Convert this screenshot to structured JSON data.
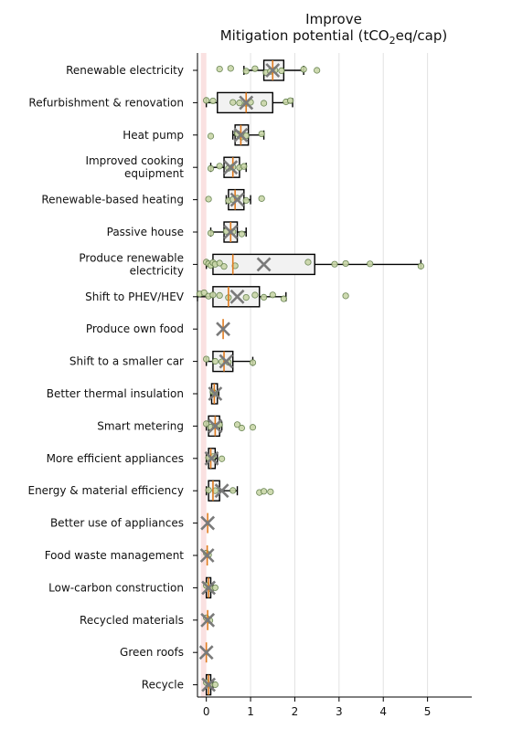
{
  "chart_data": {
    "type": "box",
    "title_line1": "Improve",
    "title_line2_pre": "Mitigation potential (tCO",
    "title_sub": "2",
    "title_line2_post": "eq/cap)",
    "xlim": [
      -0.2,
      6.0
    ],
    "xticks": [
      0,
      1,
      2,
      3,
      4,
      5
    ],
    "grid": "vertical",
    "reference_line_x": 0,
    "colors": {
      "box_fill": "#f2f2f2",
      "median": "#e07b1f",
      "mean_marker": "#7a7a7a",
      "point_fill": "#c9d6a8",
      "point_edge": "#5c7a44",
      "reference_band": "#f6c9c9"
    },
    "categories": [
      {
        "label": [
          "Renewable electricity"
        ],
        "q1": 1.3,
        "median": 1.5,
        "q3": 1.75,
        "whislo": 0.85,
        "whishi": 2.2,
        "mean": 1.5,
        "points": [
          0.3,
          0.55,
          0.9,
          1.1,
          1.35,
          1.45,
          1.55,
          1.7,
          2.2,
          2.5
        ]
      },
      {
        "label": [
          "Refurbishment & renovation"
        ],
        "q1": 0.25,
        "median": 0.9,
        "q3": 1.5,
        "whislo": 0.0,
        "whishi": 1.95,
        "mean": 0.9,
        "points": [
          0.0,
          0.15,
          0.6,
          0.75,
          0.9,
          1.0,
          1.3,
          1.8,
          1.9
        ]
      },
      {
        "label": [
          "Heat pump"
        ],
        "q1": 0.65,
        "median": 0.78,
        "q3": 0.95,
        "whislo": 0.6,
        "whishi": 1.3,
        "mean": 0.78,
        "points": [
          0.1,
          0.7,
          0.8,
          0.9,
          1.25
        ]
      },
      {
        "label": [
          "Improved cooking",
          "equipment"
        ],
        "q1": 0.4,
        "median": 0.6,
        "q3": 0.75,
        "whislo": 0.1,
        "whishi": 0.9,
        "mean": 0.55,
        "points": [
          0.1,
          0.3,
          0.5,
          0.6,
          0.75,
          0.85
        ]
      },
      {
        "label": [
          "Renewable-based heating"
        ],
        "q1": 0.5,
        "median": 0.65,
        "q3": 0.85,
        "whislo": 0.45,
        "whishi": 1.0,
        "mean": 0.7,
        "points": [
          0.05,
          0.5,
          0.6,
          0.7,
          0.9,
          1.25
        ]
      },
      {
        "label": [
          "Passive house"
        ],
        "q1": 0.4,
        "median": 0.55,
        "q3": 0.7,
        "whislo": 0.1,
        "whishi": 0.9,
        "mean": 0.55,
        "points": [
          0.1,
          0.45,
          0.6,
          0.8
        ]
      },
      {
        "label": [
          "Produce renewable",
          "electricity"
        ],
        "q1": 0.15,
        "median": 0.6,
        "q3": 2.45,
        "whislo": 0.0,
        "whishi": 4.85,
        "mean": 1.3,
        "points": [
          0.0,
          0.05,
          0.1,
          0.15,
          0.2,
          0.3,
          0.4,
          0.65,
          2.3,
          2.9,
          3.15,
          3.7,
          4.85
        ]
      },
      {
        "label": [
          "Shift to PHEV/HEV"
        ],
        "q1": 0.15,
        "median": 0.5,
        "q3": 1.2,
        "whislo": -0.2,
        "whishi": 1.8,
        "mean": 0.7,
        "points": [
          -0.15,
          -0.05,
          0.05,
          0.15,
          0.3,
          0.5,
          0.9,
          1.1,
          1.3,
          1.5,
          1.75,
          3.15
        ]
      },
      {
        "label": [
          "Produce own food"
        ],
        "median": 0.38,
        "mean": 0.38,
        "points": []
      },
      {
        "label": [
          "Shift to a smaller car"
        ],
        "q1": 0.15,
        "median": 0.4,
        "q3": 0.6,
        "whislo": 0.0,
        "whishi": 1.05,
        "mean": 0.45,
        "points": [
          0.0,
          0.2,
          0.35,
          0.5,
          1.05
        ]
      },
      {
        "label": [
          "Better thermal insulation"
        ],
        "q1": 0.12,
        "median": 0.18,
        "q3": 0.25,
        "whislo": 0.1,
        "whishi": 0.28,
        "mean": 0.2,
        "points": [
          0.15,
          0.2
        ]
      },
      {
        "label": [
          "Smart metering"
        ],
        "q1": 0.05,
        "median": 0.2,
        "q3": 0.3,
        "whislo": 0.0,
        "whishi": 0.35,
        "mean": 0.2,
        "points": [
          0.0,
          0.1,
          0.2,
          0.3,
          0.7,
          0.8,
          1.05
        ]
      },
      {
        "label": [
          "More efficient appliances"
        ],
        "q1": 0.05,
        "median": 0.1,
        "q3": 0.2,
        "whislo": 0.0,
        "whishi": 0.25,
        "mean": 0.12,
        "points": [
          0.05,
          0.15,
          0.35
        ]
      },
      {
        "label": [
          "Energy & material efficiency"
        ],
        "q1": 0.05,
        "median": 0.15,
        "q3": 0.3,
        "whislo": 0.0,
        "whishi": 0.7,
        "mean": 0.35,
        "points": [
          0.05,
          0.2,
          0.6,
          1.2,
          1.3,
          1.45
        ]
      },
      {
        "label": [
          "Better use of appliances"
        ],
        "median": 0.03,
        "mean": 0.03,
        "points": []
      },
      {
        "label": [
          "Food waste management"
        ],
        "median": 0.02,
        "mean": 0.02,
        "points": [
          0.0,
          0.05
        ]
      },
      {
        "label": [
          "Low-carbon construction"
        ],
        "q1": 0.0,
        "median": 0.05,
        "q3": 0.1,
        "whislo": 0.0,
        "whishi": 0.15,
        "mean": 0.05,
        "points": [
          0.0,
          0.1,
          0.2
        ]
      },
      {
        "label": [
          "Recycled materials"
        ],
        "median": 0.03,
        "mean": 0.03,
        "points": [
          0.0,
          0.08
        ]
      },
      {
        "label": [
          "Green roofs"
        ],
        "median": 0.0,
        "mean": 0.0,
        "points": []
      },
      {
        "label": [
          "Recycle"
        ],
        "q1": 0.0,
        "median": 0.05,
        "q3": 0.1,
        "whislo": 0.0,
        "whishi": 0.15,
        "mean": 0.05,
        "points": [
          0.0,
          0.08,
          0.2
        ]
      }
    ]
  }
}
